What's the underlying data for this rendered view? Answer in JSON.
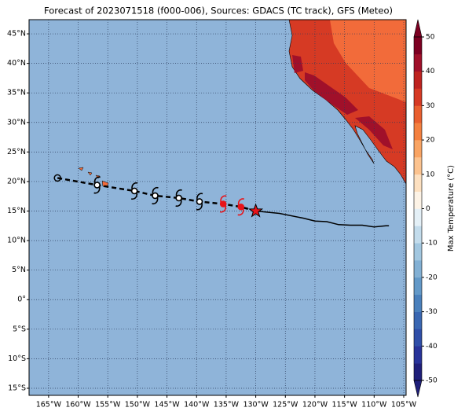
{
  "map": {
    "title": "Forecast of 2023071518 (f000-006), Sources: GDACS (TC track), GFS (Meteo)",
    "lonlim": [
      -168.3,
      -104.6
    ],
    "latlim": [
      -16.2,
      47.4
    ],
    "lonticks": [
      {
        "value": -165,
        "label": "165°W"
      },
      {
        "value": -160,
        "label": "160°W"
      },
      {
        "value": -155,
        "label": "155°W"
      },
      {
        "value": -150,
        "label": "150°W"
      },
      {
        "value": -145,
        "label": "145°W"
      },
      {
        "value": -140,
        "label": "140°W"
      },
      {
        "value": -135,
        "label": "135°W"
      },
      {
        "value": -130,
        "label": "130°W"
      },
      {
        "value": -125,
        "label": "125°W"
      },
      {
        "value": -120,
        "label": "120°W"
      },
      {
        "value": -115,
        "label": "115°W"
      },
      {
        "value": -110,
        "label": "110°W"
      },
      {
        "value": -105,
        "label": "105°W"
      }
    ],
    "latticks": [
      {
        "value": 45,
        "label": "45°N"
      },
      {
        "value": 40,
        "label": "40°N"
      },
      {
        "value": 35,
        "label": "35°N"
      },
      {
        "value": 30,
        "label": "30°N"
      },
      {
        "value": 25,
        "label": "25°N"
      },
      {
        "value": 20,
        "label": "20°N"
      },
      {
        "value": 15,
        "label": "15°N"
      },
      {
        "value": 10,
        "label": "10°N"
      },
      {
        "value": 5,
        "label": "5°N"
      },
      {
        "value": 0,
        "label": "0°"
      },
      {
        "value": -5,
        "label": "5°S"
      },
      {
        "value": -10,
        "label": "10°S"
      },
      {
        "value": -15,
        "label": "15°S"
      }
    ],
    "colorbar": {
      "label": "Max Temperature (°C)",
      "lim": [
        -50,
        50
      ],
      "ticks": [
        -50,
        -40,
        -30,
        -20,
        -10,
        0,
        10,
        20,
        30,
        40,
        50
      ],
      "colors": [
        "#1f1f7a",
        "#28339a",
        "#2f4ea8",
        "#3a67b2",
        "#4a80bc",
        "#6399c8",
        "#82b0d4",
        "#a2c7e0",
        "#c3dcec",
        "#e4f0f7",
        "#fdf3e6",
        "#fde0c0",
        "#fcc38f",
        "#f9a463",
        "#f4803f",
        "#e95f2f",
        "#d63a24",
        "#be2320",
        "#a0102a",
        "#7d0022"
      ]
    },
    "forecast_track": [
      [
        -163.5,
        20.6
      ],
      [
        -156.8,
        19.4
      ],
      [
        -150.5,
        18.4
      ],
      [
        -147,
        17.6
      ],
      [
        -143,
        17.2
      ],
      [
        -139.5,
        16.6
      ],
      [
        -135.5,
        16.2
      ],
      [
        -132.5,
        15.7
      ],
      [
        -130,
        15
      ]
    ],
    "observed_track": [
      [
        -130,
        15
      ],
      [
        -126,
        14.6
      ],
      [
        -122,
        13.8
      ],
      [
        -120,
        13.3
      ],
      [
        -118,
        13.2
      ],
      [
        -116,
        12.7
      ],
      [
        -114,
        12.6
      ],
      [
        -112,
        12.6
      ],
      [
        -110,
        12.3
      ],
      [
        -108,
        12.5
      ],
      [
        -107.5,
        12.5
      ]
    ]
  }
}
